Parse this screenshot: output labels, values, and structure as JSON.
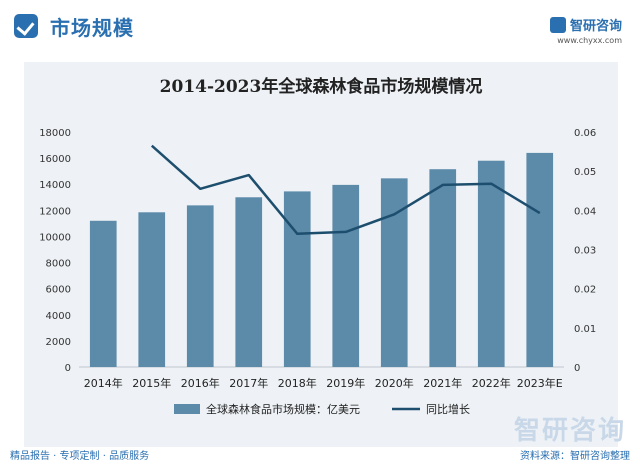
{
  "header": {
    "title": "市场规模"
  },
  "logo": {
    "name": "智研咨询",
    "url": "www.chyxx.com"
  },
  "watermark": {
    "text": "智研咨询"
  },
  "footer": {
    "left": "精品报告 · 专项定制 · 品质服务",
    "right": "资料来源：智研咨询整理"
  },
  "colors": {
    "bar": "#5c8aa9",
    "line": "#1e4e6e",
    "accent": "#2a6fb0"
  },
  "chart_data": {
    "type": "bar",
    "title": "2014-2023年全球森林食品市场规模情况",
    "categories": [
      "2014年",
      "2015年",
      "2016年",
      "2017年",
      "2018年",
      "2019年",
      "2020年",
      "2021年",
      "2022年",
      "2023年E"
    ],
    "series": [
      {
        "name": "全球森林食品市场规模：亿美元",
        "type": "bar",
        "axis": "left",
        "values": [
          11200,
          11850,
          12380,
          13000,
          13450,
          13950,
          14450,
          15150,
          15800,
          16400
        ]
      },
      {
        "name": "同比增长",
        "type": "line",
        "axis": "right",
        "values": [
          null,
          0.0565,
          0.0455,
          0.049,
          0.034,
          0.0345,
          0.039,
          0.0465,
          0.0468,
          0.0393
        ]
      }
    ],
    "y_left": {
      "min": 0,
      "max": 18000,
      "ticks": [
        "0",
        "2000",
        "4000",
        "6000",
        "8000",
        "10000",
        "12000",
        "14000",
        "16000",
        "18000"
      ]
    },
    "y_right": {
      "min": 0,
      "max": 0.06,
      "ticks": [
        "0",
        "0.01",
        "0.02",
        "0.03",
        "0.04",
        "0.05",
        "0.06"
      ]
    },
    "grid": false,
    "legend": "bottom"
  }
}
